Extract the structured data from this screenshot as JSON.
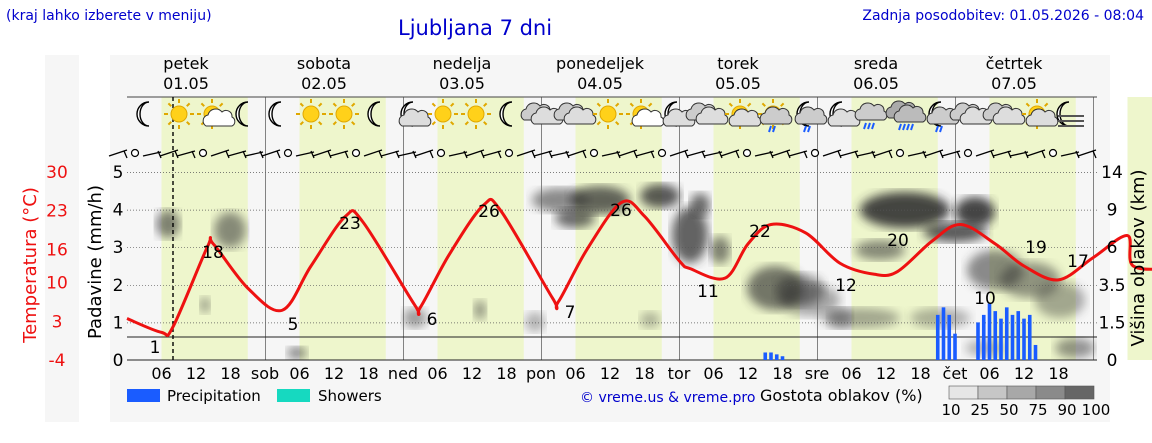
{
  "header": {
    "hint": "(kraj lahko izberete v meniju)",
    "title": "Ljubljana 7 dni",
    "updated": "Zadnja posodobitev: 01.05.2026 - 08:04"
  },
  "credit": "© vreme.us & vreme.pro",
  "colors": {
    "temperature": "#ee1111",
    "precipitation": "#1a5cff",
    "showers": "#16d9c0",
    "day_band": "#eef6cc",
    "night_band": "#f5f5f5",
    "weekend_day": "#dd0000"
  },
  "days": [
    {
      "name": "petek",
      "date": "01.05",
      "weekend": false
    },
    {
      "name": "sobota",
      "date": "02.05",
      "weekend": true
    },
    {
      "name": "nedelja",
      "date": "03.05",
      "weekend": true
    },
    {
      "name": "ponedeljek",
      "date": "04.05",
      "weekend": false
    },
    {
      "name": "torek",
      "date": "05.05",
      "weekend": false
    },
    {
      "name": "sreda",
      "date": "06.05",
      "weekend": false
    },
    {
      "name": "četrtek",
      "date": "07.05",
      "weekend": false
    }
  ],
  "weather_icons": [
    "moon-icon",
    "sun-icon",
    "partly-cloudy-icon",
    "moon-icon",
    "moon-icon",
    "sun-icon",
    "sun-icon",
    "moon-icon",
    "moon-cloud-icon",
    "sun-icon",
    "sun-icon",
    "moon-icon",
    "cloudy-icon",
    "cloudy-icon",
    "sun-icon",
    "partly-cloudy-icon",
    "moon-cloud-icon",
    "cloudy-icon",
    "sun-cloud-icon",
    "rain-icon",
    "moon-rain-icon",
    "moon-cloud-icon",
    "cloud-rain-icon",
    "heavy-rain-icon",
    "moon-rain-icon",
    "cloudy-icon",
    "cloudy-icon",
    "sun-cloud-icon",
    "fog-icon"
  ],
  "chart_data": {
    "type": "line",
    "location": "Ljubljana",
    "x_unit": "hour",
    "x_tick_labels": [
      "06",
      "12",
      "18",
      "sob",
      "06",
      "12",
      "18",
      "ned",
      "06",
      "12",
      "18",
      "pon",
      "06",
      "12",
      "18",
      "tor",
      "06",
      "12",
      "18",
      "sre",
      "06",
      "12",
      "18",
      "čet",
      "06",
      "12",
      "18"
    ],
    "y_left_temperature": {
      "label": "Temperatura (°C)",
      "ticks": [
        -4,
        3,
        10,
        16,
        23,
        30
      ],
      "range": [
        -4,
        30
      ]
    },
    "y_left_precipitation": {
      "label": "Padavine (mm/h)",
      "ticks": [
        0,
        1,
        2,
        3,
        4,
        5
      ],
      "range": [
        0,
        5
      ]
    },
    "y_right_cloud": {
      "label": "Višina oblakov (km)",
      "ticks": [
        0,
        1.5,
        3.5,
        6.0,
        9.0,
        14
      ],
      "range": [
        0,
        14
      ]
    },
    "now_marker_hour": 8,
    "series": [
      {
        "name": "Temperatura",
        "points": [
          [
            0,
            3.5
          ],
          [
            6,
            1
          ],
          [
            8,
            2
          ],
          [
            14,
            16.5
          ],
          [
            15,
            17
          ],
          [
            21,
            9
          ],
          [
            27,
            5
          ],
          [
            32,
            13
          ],
          [
            38,
            22
          ],
          [
            41,
            21
          ],
          [
            50,
            6
          ],
          [
            51,
            5.5
          ],
          [
            56,
            15
          ],
          [
            62,
            24
          ],
          [
            65,
            23
          ],
          [
            74,
            7.2
          ],
          [
            75,
            6.5
          ],
          [
            80,
            16
          ],
          [
            86,
            24.5
          ],
          [
            90,
            22
          ],
          [
            96,
            14
          ],
          [
            98,
            12.5
          ],
          [
            104,
            10.8
          ],
          [
            108,
            17
          ],
          [
            112,
            20.5
          ],
          [
            118,
            19
          ],
          [
            124,
            13.5
          ],
          [
            130,
            11.5
          ],
          [
            134,
            12
          ],
          [
            140,
            17.5
          ],
          [
            145,
            20.5
          ],
          [
            151,
            17
          ],
          [
            156,
            13
          ],
          [
            162,
            10.5
          ],
          [
            168,
            14.5
          ],
          [
            174,
            18.5
          ],
          [
            175,
            13
          ],
          [
            182,
            13
          ],
          [
            186,
            17
          ],
          [
            192,
            21
          ]
        ]
      },
      {
        "name": "Precipitation",
        "points": [
          [
            141,
            1.2
          ],
          [
            142,
            1.4
          ],
          [
            143,
            1.2
          ],
          [
            144,
            0.7
          ],
          [
            148,
            1.0
          ],
          [
            149,
            1.2
          ],
          [
            150,
            1.5
          ],
          [
            151,
            1.3
          ],
          [
            152,
            1.1
          ],
          [
            153,
            1.4
          ],
          [
            154,
            1.2
          ],
          [
            155,
            1.3
          ],
          [
            156,
            1.1
          ],
          [
            157,
            1.2
          ],
          [
            158,
            0.4
          ],
          [
            111,
            0.2
          ],
          [
            112,
            0.2
          ],
          [
            113,
            0.15
          ],
          [
            114,
            0.1
          ]
        ]
      },
      {
        "name": "Showers",
        "points": []
      }
    ],
    "temperature_labels": [
      {
        "day": 0,
        "min": 1,
        "max": 18
      },
      {
        "day": 1,
        "min": 5,
        "max": 23
      },
      {
        "day": 2,
        "min": 6,
        "max": 26
      },
      {
        "day": 3,
        "min": 7,
        "max": 26
      },
      {
        "day": 4,
        "min": 11,
        "max": 22
      },
      {
        "day": 5,
        "min": 12,
        "max": 20
      },
      {
        "day": 6,
        "min": 10,
        "max": 19
      },
      {
        "day": 7,
        "min": null,
        "max": 17
      }
    ],
    "cloud_density_legend": {
      "title": "Gostota oblakov (%)",
      "levels": [
        10,
        25,
        50,
        75,
        90,
        100
      ]
    },
    "legend": [
      {
        "label": "Precipitation",
        "color": "#1a5cff"
      },
      {
        "label": "Showers",
        "color": "#16d9c0"
      }
    ]
  }
}
